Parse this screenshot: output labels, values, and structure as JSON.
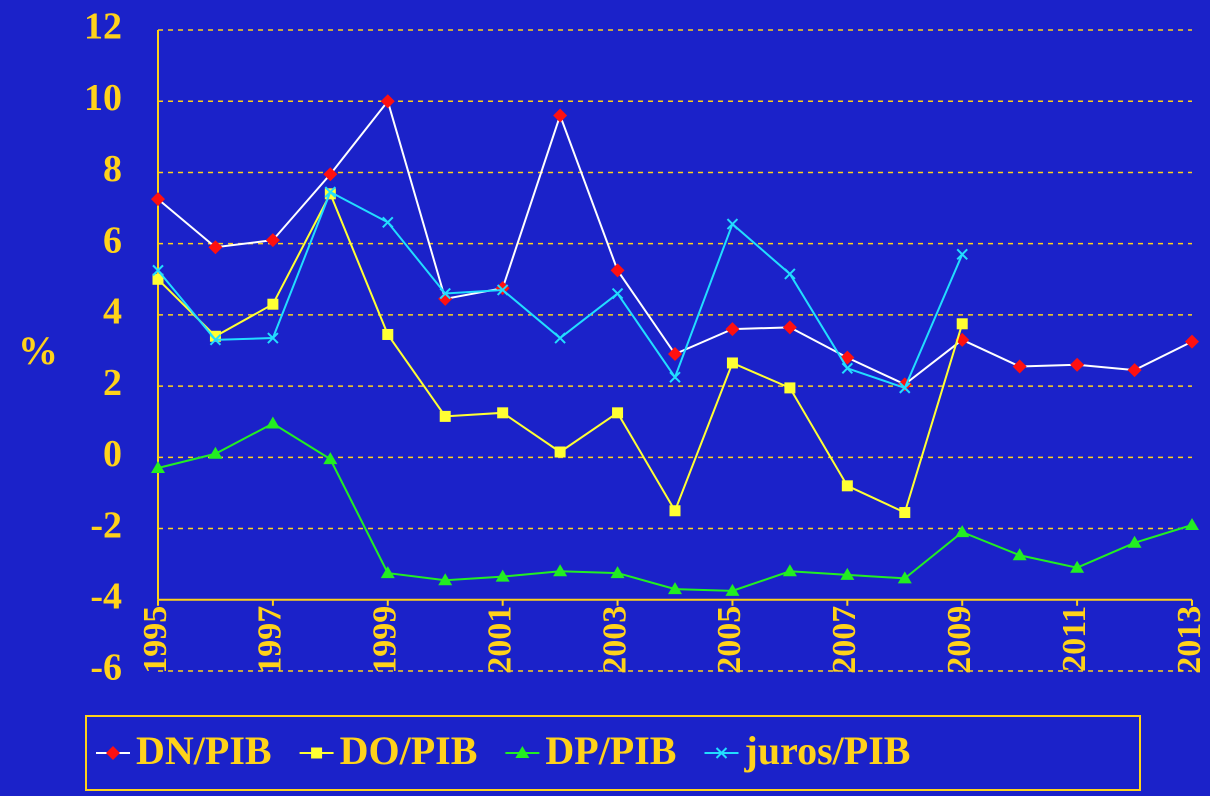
{
  "chart_data": {
    "type": "line",
    "y_label": "%",
    "x": [
      1995,
      1996,
      1997,
      1998,
      1999,
      2000,
      2001,
      2002,
      2003,
      2004,
      2005,
      2006,
      2007,
      2008,
      2009,
      2010,
      2011,
      2012,
      2013
    ],
    "xlim": [
      1995,
      2013
    ],
    "xticks": [
      1995,
      1997,
      1999,
      2001,
      2003,
      2005,
      2007,
      2009,
      2011,
      2013
    ],
    "ylim": [
      -6,
      12
    ],
    "yticks": [
      -6,
      -4,
      -2,
      0,
      2,
      4,
      6,
      8,
      10,
      12
    ],
    "x_axis_at": -4,
    "grid": true,
    "legend": "bottom",
    "series": [
      {
        "name": "DN/PIB",
        "color": "#ff1010",
        "line_color": "#ffffff",
        "marker": "diamond",
        "values": [
          7.25,
          5.9,
          6.1,
          7.95,
          10.0,
          4.45,
          4.75,
          9.6,
          5.25,
          2.9,
          3.6,
          3.65,
          2.8,
          2.05,
          3.3,
          2.55,
          2.6,
          2.45,
          3.25
        ]
      },
      {
        "name": "DO/PIB",
        "color": "#ffff33",
        "line_color": "#ffff33",
        "marker": "square",
        "values": [
          5.0,
          3.4,
          4.3,
          7.4,
          3.45,
          1.15,
          1.25,
          0.15,
          1.25,
          -1.5,
          2.65,
          1.95,
          -0.8,
          -1.55,
          3.75,
          null,
          null,
          null,
          null
        ]
      },
      {
        "name": "DP/PIB",
        "color": "#22ee22",
        "line_color": "#22ee22",
        "marker": "triangle",
        "values": [
          -0.3,
          0.1,
          0.95,
          -0.05,
          -3.25,
          -3.45,
          -3.35,
          -3.2,
          -3.25,
          -3.7,
          -3.75,
          -3.2,
          -3.3,
          -3.4,
          -2.1,
          -2.75,
          -3.1,
          -2.4,
          -1.9
        ]
      },
      {
        "name": "juros/PIB",
        "color": "#22ddff",
        "line_color": "#22ddff",
        "marker": "x",
        "values": [
          5.25,
          3.3,
          3.35,
          7.45,
          6.6,
          4.6,
          4.7,
          3.35,
          4.6,
          2.25,
          6.55,
          5.15,
          2.5,
          1.95,
          5.7,
          null,
          null,
          null,
          null
        ]
      }
    ]
  }
}
